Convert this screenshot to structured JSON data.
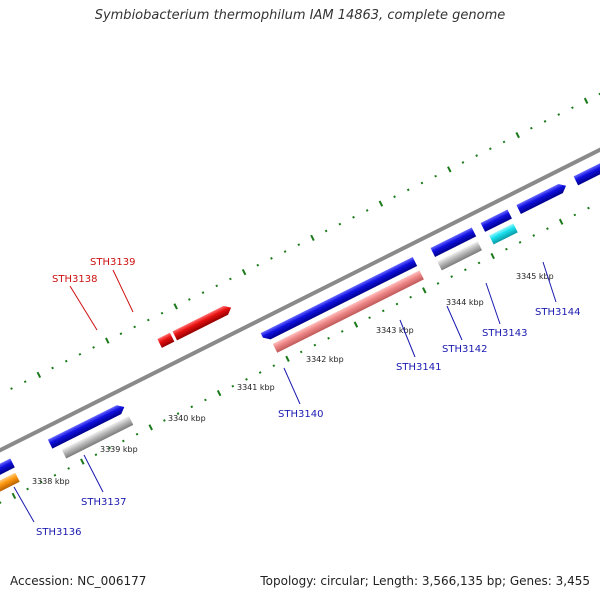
{
  "title": "Symbiobacterium thermophilum IAM 14863, complete genome",
  "footer": {
    "accession": "Accession: NC_006177",
    "stats": "Topology: circular; Length: 3,566,135 bp; Genes: 3,455"
  },
  "colors": {
    "backbone": "#8a8a8a",
    "tick": "#1a7a1a",
    "cds_forward": "#1010e0",
    "cds_highlight": "#e81010",
    "rna_light": "#f08a8a",
    "gray_feature": "#bdbdbd",
    "cyan_feature": "#19e0ee",
    "orange_feature": "#ff9a10",
    "label_blue": "#1a1ab0",
    "label_red": "#cc1010"
  },
  "scale_labels": [
    "3338 kbp",
    "3339 kbp",
    "3340 kbp",
    "3341 kbp",
    "3342 kbp",
    "3343 kbp",
    "3344 kbp",
    "3345 kbp"
  ],
  "gene_labels": [
    {
      "text": "STH3136",
      "color": "blue"
    },
    {
      "text": "STH3137",
      "color": "blue"
    },
    {
      "text": "STH3138",
      "color": "red"
    },
    {
      "text": "STH3139",
      "color": "red"
    },
    {
      "text": "STH3140",
      "color": "blue"
    },
    {
      "text": "STH3141",
      "color": "blue"
    },
    {
      "text": "STH3142",
      "color": "blue"
    },
    {
      "text": "STH3143",
      "color": "blue"
    },
    {
      "text": "STH3144",
      "color": "blue"
    }
  ]
}
